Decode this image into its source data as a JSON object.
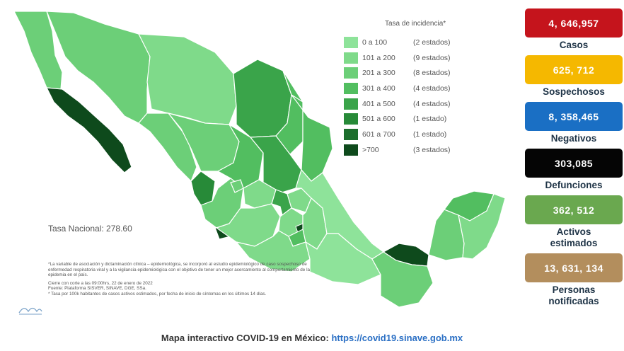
{
  "map": {
    "legend_title": "Tasa de incidencia*",
    "legend": [
      {
        "range": "0  a  100",
        "count": "(2 estados)",
        "color": "#8ee39a"
      },
      {
        "range": "101 a  200",
        "count": "(9 estados)",
        "color": "#7fda8a"
      },
      {
        "range": "201 a  300",
        "count": "(8 estados)",
        "color": "#6ccf78"
      },
      {
        "range": "301 a  400",
        "count": "(4 estados)",
        "color": "#52be60"
      },
      {
        "range": "401 a  500",
        "count": "(4 estados)",
        "color": "#3aa44a"
      },
      {
        "range": "501 a  600",
        "count": "(1 estado)",
        "color": "#278a38"
      },
      {
        "range": "601 a  700",
        "count": "(1 estado)",
        "color": "#1c6e2c"
      },
      {
        "range": ">700",
        "count": "(3 estados)",
        "color": "#0e4a1c"
      }
    ],
    "tasa_nacional": "Tasa Nacional: 278.60",
    "note": "*La variable de asociación y dictaminación clínica – epidemiológica, se incorporó al estudio epidemiológico de caso sospechoso de enfermedad respiratoria viral y a la vigilancia epidemiológica con el objetivo de tener un mejor acercamiento al comportamiento de la epidemia en el país.",
    "footer": [
      "Cierre con corte a las 09:00hrs, 22 de enero de 2022",
      "Fuente: Plataforma SISVER, SINAVE, DGE, SSa.",
      "* Tasa por 100k habitantes de casos activos estimados, por fecha de inicio de síntomas en los últimos 14 días."
    ]
  },
  "stats": [
    {
      "value": "4, 646,957",
      "label": "Casos",
      "color": "#c5141c"
    },
    {
      "value": "625, 712",
      "label": "Sospechosos",
      "color": "#f5b800"
    },
    {
      "value": "8, 358,465",
      "label": "Negativos",
      "color": "#1a6fc4"
    },
    {
      "value": "303,085",
      "label": "Defunciones",
      "color": "#050505"
    },
    {
      "value": "362, 512",
      "label": "Activos\nestimados",
      "color": "#6aa84f"
    },
    {
      "value": "13, 631, 134",
      "label": "Personas\nnotificadas",
      "color": "#b38e5d"
    }
  ],
  "bottom": {
    "text": "Mapa interactivo COVID-19 en México: ",
    "link": "https://covid19.sinave.gob.mx"
  }
}
